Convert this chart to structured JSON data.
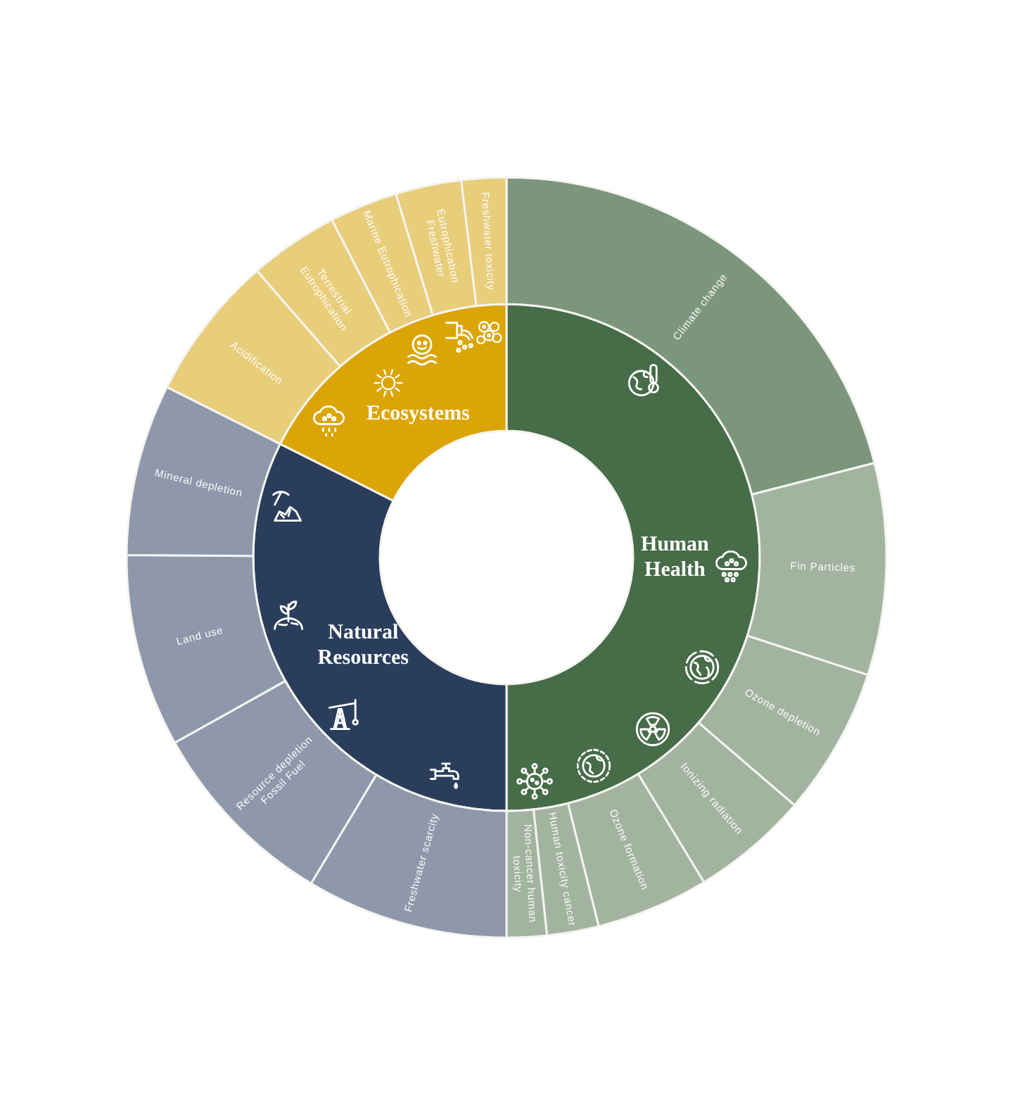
{
  "chart_data": [
    {
      "type": "donut",
      "categories": [
        "Human Health",
        "Natural Resources",
        "Ecosystems"
      ],
      "values": [
        50,
        32.4,
        17.6
      ],
      "colors": [
        "#476c48",
        "#2a3e5c",
        "#dba507"
      ]
    },
    {
      "type": "donut",
      "categories": [
        "Climate change",
        "Fin Particles",
        "Ozone depletion",
        "Ionizing radiation",
        "Ozone formation",
        "Human toxicity cancer",
        "Non-cancer human toxicity",
        "Freshwater scarcity",
        "Resource depletion Fossil Fuel",
        "Land use",
        "Mineral depletion",
        "Acidification",
        "Terrestrial Eutrophication",
        "Marine Eutrophication",
        "Eutrophication Freshwater",
        "Freshwater toxicity"
      ],
      "values": [
        21,
        9,
        6.3,
        5,
        4.8,
        2.2,
        1.7,
        8.6,
        8.3,
        8.2,
        7.3,
        6.2,
        3.8,
        2.9,
        2.8,
        1.9
      ],
      "colors": [
        "#7c967c",
        "#a2b49f",
        "#a2b49f",
        "#a2b49f",
        "#a2b49f",
        "#a2b49f",
        "#a2b49f",
        "#8e98aa",
        "#8e98aa",
        "#8e98aa",
        "#8e98aa",
        "#e8cd7b",
        "#e8cd7b",
        "#e8cd7b",
        "#e8cd7b",
        "#e8cd7b"
      ]
    }
  ]
}
